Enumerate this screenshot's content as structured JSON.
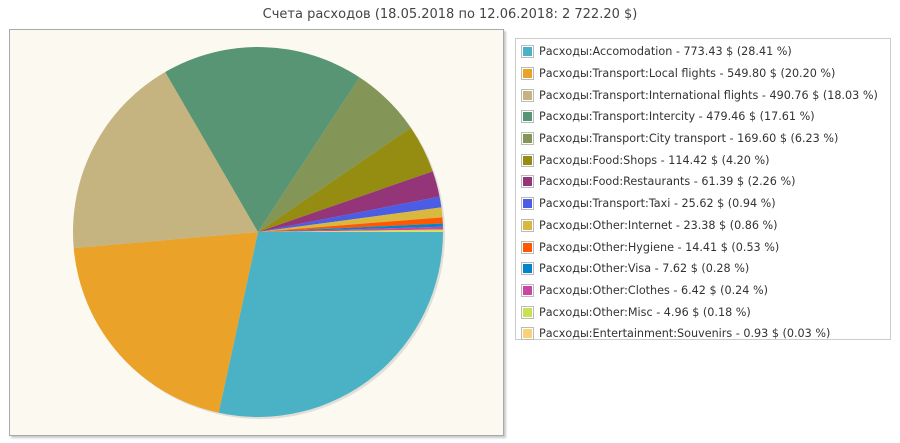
{
  "chart_data": {
    "type": "pie",
    "title": "Счета расходов (18.05.2018 по 12.06.2018: 2 722.20 $)",
    "legend_position": "right",
    "slices": [
      {
        "label": "Расходы:Accomodation - 773.43 $ (28.41 %)",
        "value": 773.43,
        "percent": 28.41,
        "color": "#4bb2c5"
      },
      {
        "label": "Расходы:Transport:Local flights - 549.80 $ (20.20 %)",
        "value": 549.8,
        "percent": 20.2,
        "color": "#eaa228"
      },
      {
        "label": "Расходы:Transport:International flights - 490.76 $ (18.03 %)",
        "value": 490.76,
        "percent": 18.03,
        "color": "#c5b47f"
      },
      {
        "label": "Расходы:Transport:Intercity - 479.46 $ (17.61 %)",
        "value": 479.46,
        "percent": 17.61,
        "color": "#579575"
      },
      {
        "label": "Расходы:Transport:City transport - 169.60 $ (6.23 %)",
        "value": 169.6,
        "percent": 6.23,
        "color": "#839557"
      },
      {
        "label": "Расходы:Food:Shops - 114.42 $ (4.20 %)",
        "value": 114.42,
        "percent": 4.2,
        "color": "#958c12"
      },
      {
        "label": "Расходы:Food:Restaurants - 61.39 $ (2.26 %)",
        "value": 61.39,
        "percent": 2.26,
        "color": "#953579"
      },
      {
        "label": "Расходы:Transport:Taxi - 25.62 $ (0.94 %)",
        "value": 25.62,
        "percent": 0.94,
        "color": "#4b5de4"
      },
      {
        "label": "Расходы:Other:Internet - 23.38 $ (0.86 %)",
        "value": 23.38,
        "percent": 0.86,
        "color": "#d8b83f"
      },
      {
        "label": "Расходы:Other:Hygiene - 14.41 $ (0.53 %)",
        "value": 14.41,
        "percent": 0.53,
        "color": "#ff5800"
      },
      {
        "label": "Расходы:Other:Visa - 7.62 $ (0.28 %)",
        "value": 7.62,
        "percent": 0.28,
        "color": "#0085cc"
      },
      {
        "label": "Расходы:Other:Clothes - 6.42 $ (0.24 %)",
        "value": 6.42,
        "percent": 0.24,
        "color": "#c747a3"
      },
      {
        "label": "Расходы:Other:Misc - 4.96 $ (0.18 %)",
        "value": 4.96,
        "percent": 0.18,
        "color": "#cddf54"
      },
      {
        "label": "Расходы:Entertainment:Souvenirs - 0.93 $ (0.03 %)",
        "value": 0.93,
        "percent": 0.03,
        "color": "#fbd178"
      }
    ]
  }
}
